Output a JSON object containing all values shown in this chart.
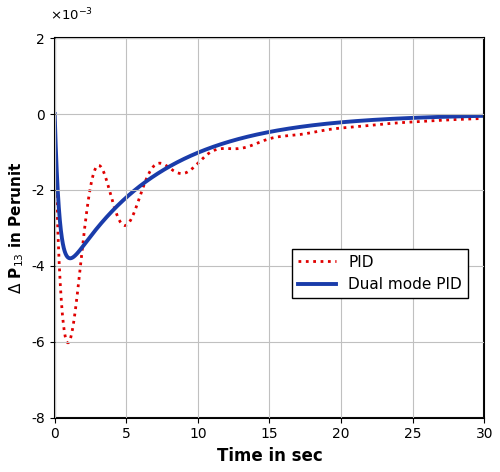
{
  "title": "",
  "xlabel": "Time in sec",
  "ylabel": "Δ P₁₃ in Perunit",
  "xlim": [
    0,
    30
  ],
  "ylim": [
    -0.008,
    0.002
  ],
  "yticks": [
    -0.008,
    -0.006,
    -0.004,
    -0.002,
    0,
    0.002
  ],
  "xticks": [
    0,
    5,
    10,
    15,
    20,
    25,
    30
  ],
  "grid": true,
  "legend_labels": [
    "PID",
    "Dual mode PID"
  ],
  "pid_color": "#e00000",
  "dual_color": "#1a3caa",
  "pid_linewidth": 2.0,
  "dual_linewidth": 2.8,
  "background_color": "#ffffff",
  "figsize": [
    5.0,
    4.72
  ],
  "dpi": 100
}
